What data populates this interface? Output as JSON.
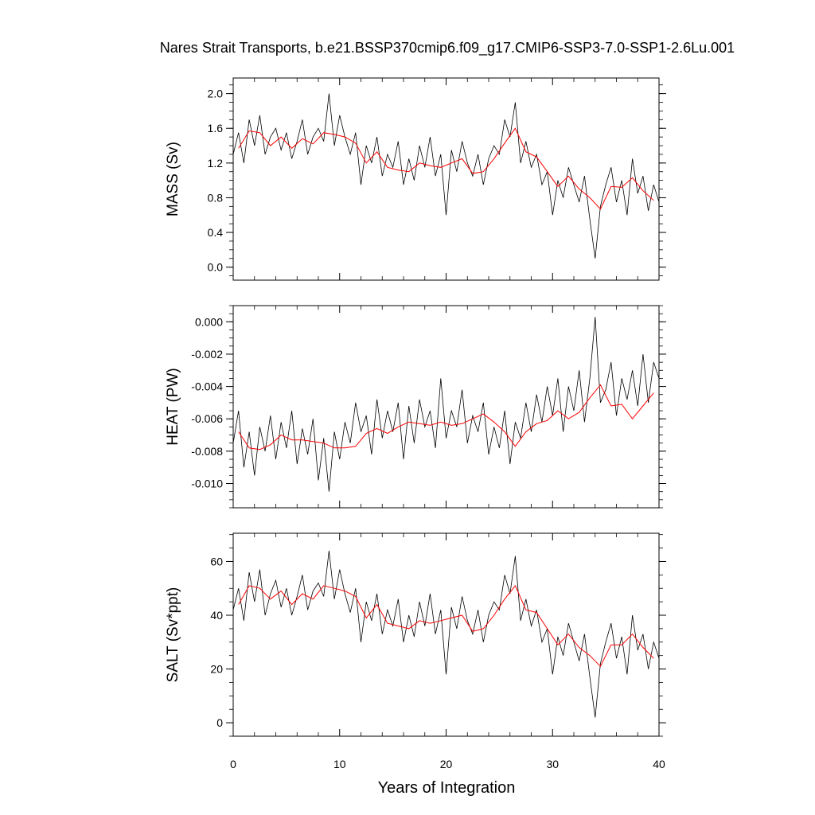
{
  "title": "Nares Strait Transports, b.e21.BSSP370cmip6.f09_g17.CMIP6-SSP3-7.0-SSP1-2.6Lu.001",
  "xlabel": "Years of Integration",
  "colors": {
    "raw": "#000000",
    "smooth": "#ff0000"
  },
  "chart_data": [
    {
      "type": "line",
      "ylabel": "MASS (Sv)",
      "xlim": [
        0,
        40
      ],
      "ylim": [
        -0.15,
        2.18
      ],
      "x_ticks": [
        "0",
        "10",
        "20",
        "30",
        "40"
      ],
      "y_ticks": [
        {
          "v": 0.0,
          "label": "0.0"
        },
        {
          "v": 0.4,
          "label": "0.4"
        },
        {
          "v": 0.8,
          "label": "0.8"
        },
        {
          "v": 1.2,
          "label": "1.2"
        },
        {
          "v": 1.6,
          "label": "1.6"
        },
        {
          "v": 2.0,
          "label": "2.0"
        }
      ],
      "y_minor_step": 0.1,
      "series": [
        {
          "role": "monthly",
          "x": [
            0,
            0.5,
            1,
            1.5,
            2,
            2.5,
            3,
            3.5,
            4,
            4.5,
            5,
            5.5,
            6,
            6.5,
            7,
            7.5,
            8,
            8.5,
            9,
            9.5,
            10,
            10.5,
            11,
            11.5,
            12,
            12.5,
            13,
            13.5,
            14,
            14.5,
            15,
            15.5,
            16,
            16.5,
            17,
            17.5,
            18,
            18.5,
            19,
            19.5,
            20,
            20.5,
            21,
            21.5,
            22,
            22.5,
            23,
            23.5,
            24,
            24.5,
            25,
            25.5,
            26,
            26.5,
            27,
            27.5,
            28,
            28.5,
            29,
            29.5,
            30,
            30.5,
            31,
            31.5,
            32,
            32.5,
            33,
            33.5,
            34,
            34.5,
            35,
            35.5,
            36,
            36.5,
            37,
            37.5,
            38,
            38.5,
            39,
            39.5,
            40
          ],
          "values": [
            1.3,
            1.55,
            1.2,
            1.7,
            1.4,
            1.75,
            1.3,
            1.5,
            1.6,
            1.35,
            1.55,
            1.25,
            1.45,
            1.7,
            1.3,
            1.5,
            1.6,
            1.45,
            2.0,
            1.4,
            1.75,
            1.5,
            1.3,
            1.55,
            0.95,
            1.4,
            1.2,
            1.5,
            1.05,
            1.3,
            1.15,
            1.45,
            0.95,
            1.25,
            1.0,
            1.4,
            1.15,
            1.5,
            1.05,
            1.3,
            0.6,
            1.35,
            1.1,
            1.45,
            1.2,
            1.05,
            1.3,
            0.95,
            1.25,
            1.4,
            1.3,
            1.7,
            1.5,
            1.9,
            1.2,
            1.45,
            1.15,
            1.3,
            0.95,
            1.1,
            0.6,
            1.0,
            0.8,
            1.15,
            0.95,
            0.75,
            1.05,
            0.55,
            0.1,
            0.7,
            0.95,
            1.15,
            0.75,
            1.0,
            0.6,
            1.25,
            0.85,
            1.05,
            0.65,
            0.95,
            0.75
          ]
        },
        {
          "role": "annual",
          "x": [
            0.5,
            1.5,
            2.5,
            3.5,
            4.5,
            5.5,
            6.5,
            7.5,
            8.5,
            9.5,
            10.5,
            11.5,
            12.5,
            13.5,
            14.5,
            15.5,
            16.5,
            17.5,
            18.5,
            19.5,
            20.5,
            21.5,
            22.5,
            23.5,
            24.5,
            25.5,
            26.5,
            27.5,
            28.5,
            29.5,
            30.5,
            31.5,
            32.5,
            33.5,
            34.5,
            35.5,
            36.5,
            37.5,
            38.5,
            39.5
          ],
          "values": [
            1.37,
            1.57,
            1.55,
            1.4,
            1.5,
            1.37,
            1.48,
            1.42,
            1.55,
            1.53,
            1.5,
            1.43,
            1.2,
            1.33,
            1.15,
            1.12,
            1.1,
            1.2,
            1.17,
            1.15,
            1.2,
            1.25,
            1.08,
            1.1,
            1.25,
            1.43,
            1.6,
            1.33,
            1.27,
            1.1,
            0.93,
            1.05,
            0.9,
            0.8,
            0.67,
            0.93,
            0.92,
            1.03,
            0.88,
            0.77
          ]
        }
      ]
    },
    {
      "type": "line",
      "ylabel": "HEAT (PW)",
      "xlim": [
        0,
        40
      ],
      "ylim": [
        -0.0115,
        0.001
      ],
      "x_ticks": [
        "0",
        "10",
        "20",
        "30",
        "40"
      ],
      "y_ticks": [
        {
          "v": -0.01,
          "label": "-0.010"
        },
        {
          "v": -0.008,
          "label": "-0.008"
        },
        {
          "v": -0.006,
          "label": "-0.006"
        },
        {
          "v": -0.004,
          "label": "-0.004"
        },
        {
          "v": -0.002,
          "label": "-0.002"
        },
        {
          "v": 0.0,
          "label": "0.000"
        }
      ],
      "y_minor_step": 0.0005,
      "series": [
        {
          "role": "monthly",
          "x": [
            0,
            0.5,
            1,
            1.5,
            2,
            2.5,
            3,
            3.5,
            4,
            4.5,
            5,
            5.5,
            6,
            6.5,
            7,
            7.5,
            8,
            8.5,
            9,
            9.5,
            10,
            10.5,
            11,
            11.5,
            12,
            12.5,
            13,
            13.5,
            14,
            14.5,
            15,
            15.5,
            16,
            16.5,
            17,
            17.5,
            18,
            18.5,
            19,
            19.5,
            20,
            20.5,
            21,
            21.5,
            22,
            22.5,
            23,
            23.5,
            24,
            24.5,
            25,
            25.5,
            26,
            26.5,
            27,
            27.5,
            28,
            28.5,
            29,
            29.5,
            30,
            30.5,
            31,
            31.5,
            32,
            32.5,
            33,
            33.5,
            34,
            34.5,
            35,
            35.5,
            36,
            36.5,
            37,
            37.5,
            38,
            38.5,
            39,
            39.5,
            40
          ],
          "values": [
            -0.0075,
            -0.0055,
            -0.009,
            -0.0068,
            -0.0095,
            -0.0065,
            -0.008,
            -0.0058,
            -0.0085,
            -0.0062,
            -0.0078,
            -0.0055,
            -0.0088,
            -0.0066,
            -0.0082,
            -0.006,
            -0.0098,
            -0.0072,
            -0.0105,
            -0.0068,
            -0.0085,
            -0.0062,
            -0.0075,
            -0.005,
            -0.0068,
            -0.0058,
            -0.0082,
            -0.0048,
            -0.0072,
            -0.0055,
            -0.0068,
            -0.005,
            -0.0085,
            -0.0052,
            -0.0075,
            -0.0048,
            -0.0065,
            -0.0055,
            -0.0078,
            -0.0035,
            -0.0072,
            -0.0055,
            -0.0065,
            -0.0042,
            -0.0075,
            -0.0058,
            -0.0068,
            -0.005,
            -0.0082,
            -0.0065,
            -0.0078,
            -0.0055,
            -0.0088,
            -0.0062,
            -0.0072,
            -0.005,
            -0.0068,
            -0.0045,
            -0.0062,
            -0.004,
            -0.0058,
            -0.0035,
            -0.0068,
            -0.004,
            -0.0055,
            -0.003,
            -0.0062,
            -0.0035,
            0.0003,
            -0.005,
            -0.0042,
            -0.0025,
            -0.0058,
            -0.0035,
            -0.0048,
            -0.003,
            -0.0052,
            -0.002,
            -0.005,
            -0.0025,
            -0.0035
          ]
        },
        {
          "role": "annual",
          "x": [
            0.5,
            1.5,
            2.5,
            3.5,
            4.5,
            5.5,
            6.5,
            7.5,
            8.5,
            9.5,
            10.5,
            11.5,
            12.5,
            13.5,
            14.5,
            15.5,
            16.5,
            17.5,
            18.5,
            19.5,
            20.5,
            21.5,
            22.5,
            23.5,
            24.5,
            25.5,
            26.5,
            27.5,
            28.5,
            29.5,
            30.5,
            31.5,
            32.5,
            33.5,
            34.5,
            35.5,
            36.5,
            37.5,
            38.5,
            39.5
          ],
          "values": [
            -0.0068,
            -0.0078,
            -0.0079,
            -0.0076,
            -0.007,
            -0.0073,
            -0.0073,
            -0.0074,
            -0.0075,
            -0.0078,
            -0.0078,
            -0.0077,
            -0.0069,
            -0.0066,
            -0.0069,
            -0.0065,
            -0.0062,
            -0.0063,
            -0.0064,
            -0.0062,
            -0.0064,
            -0.0063,
            -0.006,
            -0.0057,
            -0.0062,
            -0.0068,
            -0.0077,
            -0.0068,
            -0.0063,
            -0.0061,
            -0.0055,
            -0.006,
            -0.0056,
            -0.0047,
            -0.0039,
            -0.0052,
            -0.0051,
            -0.006,
            -0.0052,
            -0.0044
          ]
        }
      ]
    },
    {
      "type": "line",
      "ylabel": "SALT (Sv*ppt)",
      "xlim": [
        0,
        40
      ],
      "ylim": [
        -5,
        70.5
      ],
      "x_ticks": [
        "0",
        "10",
        "20",
        "30",
        "40"
      ],
      "y_ticks": [
        {
          "v": 0,
          "label": "0"
        },
        {
          "v": 20,
          "label": "20"
        },
        {
          "v": 40,
          "label": "40"
        },
        {
          "v": 60,
          "label": "60"
        }
      ],
      "y_minor_step": 5,
      "series": [
        {
          "role": "monthly",
          "x": [
            0,
            0.5,
            1,
            1.5,
            2,
            2.5,
            3,
            3.5,
            4,
            4.5,
            5,
            5.5,
            6,
            6.5,
            7,
            7.5,
            8,
            8.5,
            9,
            9.5,
            10,
            10.5,
            11,
            11.5,
            12,
            12.5,
            13,
            13.5,
            14,
            14.5,
            15,
            15.5,
            16,
            16.5,
            17,
            17.5,
            18,
            18.5,
            19,
            19.5,
            20,
            20.5,
            21,
            21.5,
            22,
            22.5,
            23,
            23.5,
            24,
            24.5,
            25,
            25.5,
            26,
            26.5,
            27,
            27.5,
            28,
            28.5,
            29,
            29.5,
            30,
            30.5,
            31,
            31.5,
            32,
            32.5,
            33,
            33.5,
            34,
            34.5,
            35,
            35.5,
            36,
            36.5,
            37,
            37.5,
            38,
            38.5,
            39,
            39.5,
            40
          ],
          "values": [
            42,
            50,
            38,
            56,
            45,
            57,
            40,
            48,
            53,
            43,
            50,
            40,
            47,
            55,
            42,
            49,
            52,
            47,
            64,
            46,
            57,
            48,
            41,
            50,
            30,
            45,
            38,
            48,
            33,
            42,
            36,
            46,
            30,
            40,
            32,
            45,
            36,
            48,
            33,
            42,
            18,
            43,
            35,
            47,
            38,
            33,
            42,
            30,
            40,
            45,
            42,
            55,
            48,
            62,
            38,
            46,
            36,
            42,
            30,
            35,
            18,
            32,
            25,
            37,
            30,
            23,
            33,
            17,
            2,
            22,
            30,
            37,
            24,
            32,
            18,
            40,
            27,
            33,
            20,
            30,
            24
          ]
        },
        {
          "role": "annual",
          "x": [
            0.5,
            1.5,
            2.5,
            3.5,
            4.5,
            5.5,
            6.5,
            7.5,
            8.5,
            9.5,
            10.5,
            11.5,
            12.5,
            13.5,
            14.5,
            15.5,
            16.5,
            17.5,
            18.5,
            19.5,
            20.5,
            21.5,
            22.5,
            23.5,
            24.5,
            25.5,
            26.5,
            27.5,
            28.5,
            29.5,
            30.5,
            31.5,
            32.5,
            33.5,
            34.5,
            35.5,
            36.5,
            37.5,
            38.5,
            39.5
          ],
          "values": [
            44,
            51,
            50,
            46,
            49,
            44,
            48,
            46,
            51,
            50,
            49,
            47,
            39,
            44,
            37,
            36,
            35,
            38,
            37,
            38,
            39,
            40,
            34,
            35,
            40,
            46,
            51,
            42,
            41,
            35,
            29,
            33,
            28,
            25,
            21,
            29,
            29,
            33,
            28,
            24
          ]
        }
      ]
    }
  ]
}
